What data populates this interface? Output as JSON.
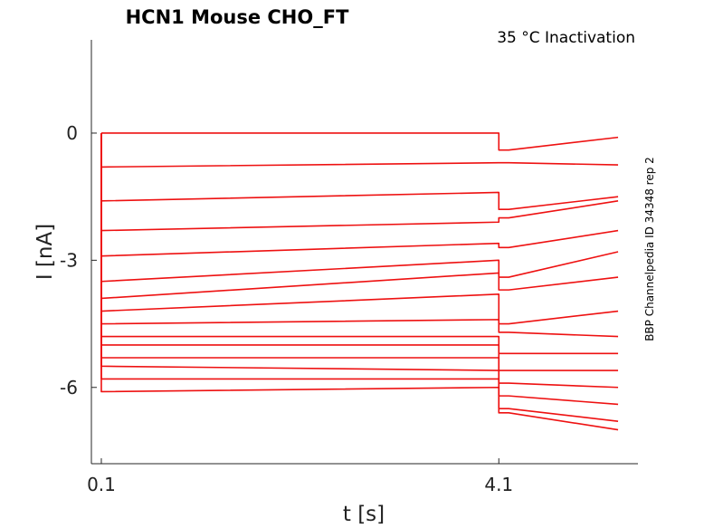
{
  "chart_data": {
    "type": "line",
    "title": "HCN1  Mouse  CHO_FT",
    "subtitle": "35 °C  Inactivation",
    "side_label": "BBP Channelpedia ID 34348 rep 2",
    "xlabel": "t [s]",
    "ylabel": "I [nA]",
    "xlim": [
      0,
      5.5
    ],
    "ylim": [
      -7.8,
      2.2
    ],
    "x_ticks": [
      {
        "value": 0.1,
        "label": "0.1"
      },
      {
        "value": 4.1,
        "label": "4.1"
      }
    ],
    "y_ticks": [
      {
        "value": 0,
        "label": "0"
      },
      {
        "value": -3,
        "label": "-3"
      },
      {
        "value": -6,
        "label": "-6"
      }
    ],
    "grid": false,
    "line_color": "#ee1111",
    "series": [
      {
        "values": [
          [
            0.1,
            0
          ],
          [
            4.1,
            0
          ],
          [
            4.2,
            -0.4
          ],
          [
            5.3,
            -0.1
          ]
        ]
      },
      {
        "values": [
          [
            0.1,
            -0.8
          ],
          [
            4.1,
            -0.7
          ],
          [
            4.2,
            -0.7
          ],
          [
            5.3,
            -0.75
          ]
        ]
      },
      {
        "values": [
          [
            0.1,
            -1.6
          ],
          [
            4.1,
            -1.4
          ],
          [
            4.2,
            -1.8
          ],
          [
            5.3,
            -1.5
          ]
        ]
      },
      {
        "values": [
          [
            0.1,
            -2.3
          ],
          [
            4.1,
            -2.1
          ],
          [
            4.2,
            -2.0
          ],
          [
            5.3,
            -1.6
          ]
        ]
      },
      {
        "values": [
          [
            0.1,
            -2.9
          ],
          [
            4.1,
            -2.6
          ],
          [
            4.2,
            -2.7
          ],
          [
            5.3,
            -2.3
          ]
        ]
      },
      {
        "values": [
          [
            0.1,
            -3.5
          ],
          [
            4.1,
            -3.0
          ],
          [
            4.2,
            -3.4
          ],
          [
            5.3,
            -2.8
          ]
        ]
      },
      {
        "values": [
          [
            0.1,
            -3.9
          ],
          [
            4.1,
            -3.3
          ],
          [
            4.2,
            -3.7
          ],
          [
            5.3,
            -3.4
          ]
        ]
      },
      {
        "values": [
          [
            0.1,
            -4.2
          ],
          [
            4.1,
            -3.8
          ],
          [
            4.2,
            -4.5
          ],
          [
            5.3,
            -4.2
          ]
        ]
      },
      {
        "values": [
          [
            0.1,
            -4.5
          ],
          [
            4.1,
            -4.4
          ],
          [
            4.2,
            -4.7
          ],
          [
            5.3,
            -4.8
          ]
        ]
      },
      {
        "values": [
          [
            0.1,
            -4.8
          ],
          [
            4.1,
            -4.8
          ],
          [
            4.2,
            -5.2
          ],
          [
            5.3,
            -5.2
          ]
        ]
      },
      {
        "values": [
          [
            0.1,
            -5.0
          ],
          [
            4.1,
            -5.0
          ],
          [
            4.2,
            -5.6
          ],
          [
            5.3,
            -5.6
          ]
        ]
      },
      {
        "values": [
          [
            0.1,
            -5.3
          ],
          [
            4.1,
            -5.3
          ],
          [
            4.2,
            -5.9
          ],
          [
            5.3,
            -6.0
          ]
        ]
      },
      {
        "values": [
          [
            0.1,
            -5.5
          ],
          [
            4.1,
            -5.6
          ],
          [
            4.2,
            -6.2
          ],
          [
            5.3,
            -6.4
          ]
        ]
      },
      {
        "values": [
          [
            0.1,
            -5.8
          ],
          [
            4.1,
            -5.8
          ],
          [
            4.2,
            -6.5
          ],
          [
            5.3,
            -6.8
          ]
        ]
      },
      {
        "values": [
          [
            0.1,
            -6.1
          ],
          [
            4.1,
            -6.0
          ],
          [
            4.2,
            -6.6
          ],
          [
            5.3,
            -7.0
          ]
        ]
      }
    ]
  }
}
